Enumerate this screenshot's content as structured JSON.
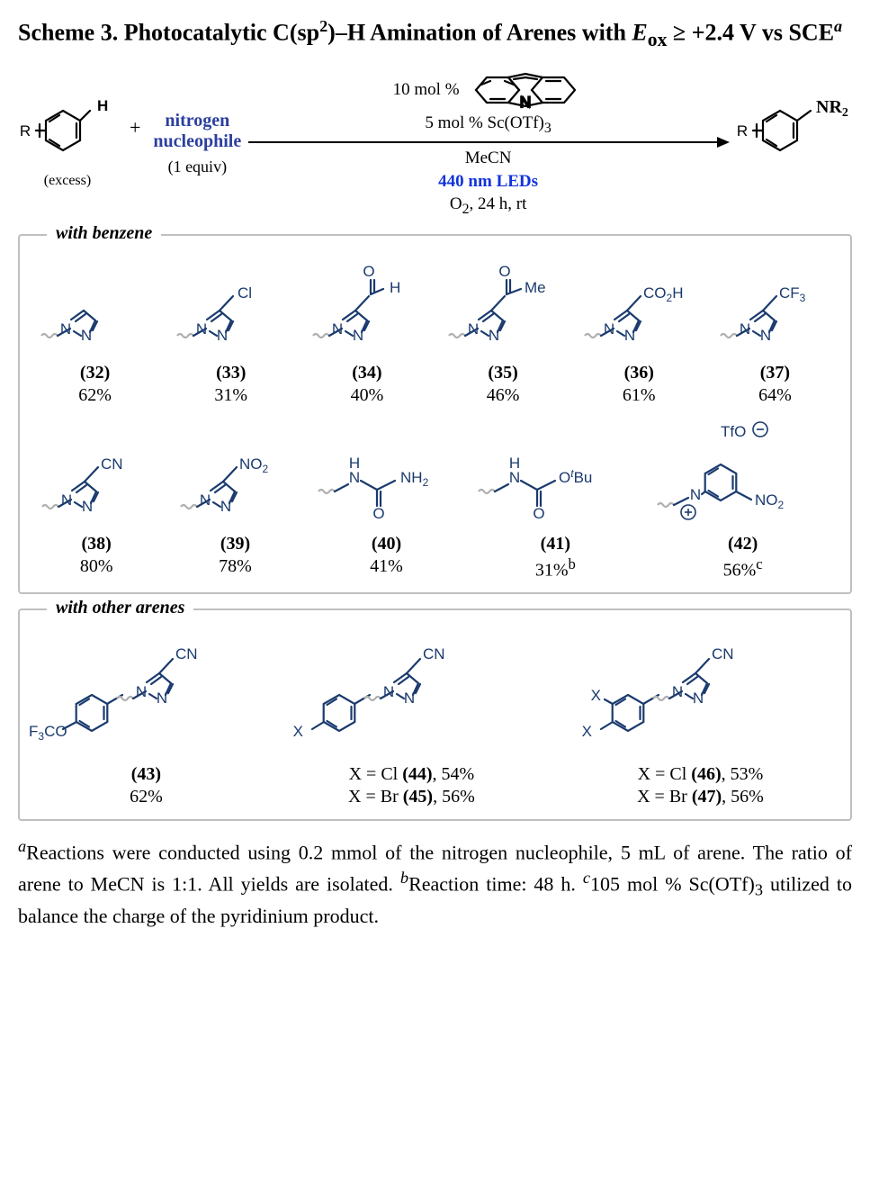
{
  "title": {
    "prefix": "Scheme 3. Photocatalytic C(sp",
    "sp_exp": "2",
    "mid": ")–H Amination of Arenes with ",
    "evar": "E",
    "esub": "ox",
    "cond": " ≥ +2.4 V vs SCE",
    "supref": "a"
  },
  "rxn": {
    "excess": "(excess)",
    "nuc1": "nitrogen",
    "nuc2": "nucleophile",
    "nuc_sub": "(1 equiv)",
    "cat_percent": "10 mol %",
    "lewis": "5 mol % Sc(OTf)",
    "lewis_sub": "3",
    "solvent": "MeCN",
    "led": "440 nm LEDs",
    "cond_tail_pre": "O",
    "cond_tail_sub": "2",
    "cond_tail_post": ", 24 h, rt",
    "H": "H",
    "R": "R",
    "NR2_pre": "NR",
    "NR2_sub": "2"
  },
  "box1": {
    "legend": "with benzene",
    "row1": [
      {
        "sub": "",
        "num": "(32)",
        "yield": "62%"
      },
      {
        "sub": "Cl",
        "num": "(33)",
        "yield": "31%"
      },
      {
        "sub": "CHO",
        "num": "(34)",
        "yield": "40%"
      },
      {
        "sub": "COMe",
        "num": "(35)",
        "yield": "46%"
      },
      {
        "sub": "CO2H",
        "num": "(36)",
        "yield": "61%"
      },
      {
        "sub": "CF3",
        "num": "(37)",
        "yield": "64%"
      }
    ],
    "row2": [
      {
        "sub": "CN",
        "num": "(38)",
        "yield": "80%"
      },
      {
        "sub": "NO2",
        "num": "(39)",
        "yield": "78%"
      },
      {
        "type": "urea",
        "num": "(40)",
        "yield": "41%"
      },
      {
        "type": "boc",
        "num": "(41)",
        "yield": "31%",
        "note": "b"
      },
      {
        "type": "pyridinium",
        "num": "(42)",
        "yield": "56%",
        "note": "c"
      }
    ]
  },
  "box2": {
    "legend": "with other arenes",
    "items": [
      {
        "arene": "F3CO",
        "num": "(43)",
        "yield": "62%"
      },
      {
        "variants": [
          {
            "x": "Cl",
            "num": "(44)",
            "yield": "54%"
          },
          {
            "x": "Br",
            "num": "(45)",
            "yield": "56%"
          }
        ]
      },
      {
        "disub": true,
        "variants": [
          {
            "x": "Cl",
            "num": "(46)",
            "yield": "53%"
          },
          {
            "x": "Br",
            "num": "(47)",
            "yield": "56%"
          }
        ]
      }
    ],
    "X_prefix": "X = "
  },
  "footnote": {
    "a_pre": "Reactions were conducted using 0.2 mmol of the nitrogen nucleophile, 5 mL of arene. The ratio of arene to MeCN is 1:1. All yields are isolated. ",
    "b": "Reaction time: 48 h. ",
    "c_pre": "105 mol % Sc(OTf)",
    "c_sub": "3",
    "c_post": " utilized to balance the charge of the pyridinium product."
  },
  "labels": {
    "CN": "CN",
    "NO2_pre": "NO",
    "NO2_sub": "2",
    "CO2H_pre": "CO",
    "CO2H_sub": "2",
    "CO2H_post": "H",
    "CF3_pre": "CF",
    "CF3_sub": "3",
    "Cl": "Cl",
    "TfO": "TfO",
    "OtBu_pre": "O",
    "OtBu_t": "t",
    "OtBu_post": "Bu",
    "NH2_pre": "NH",
    "NH2_sub": "2",
    "Me": "Me",
    "H": "H",
    "O": "O",
    "N": "N",
    "HN_H": "H",
    "HN_N": "N",
    "X": "X",
    "F3CO_pre": "F",
    "F3CO_sub": "3",
    "F3CO_post": "CO"
  }
}
